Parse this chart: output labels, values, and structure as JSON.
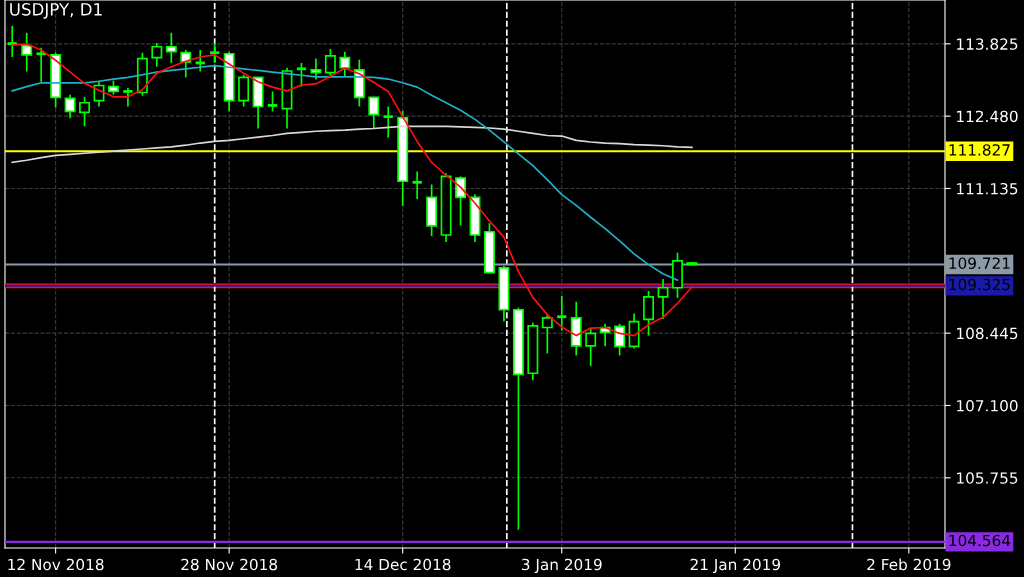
{
  "chart_data": {
    "type": "candlestick",
    "title": "USDJPY, D1",
    "categories": [
      null,
      null,
      null,
      "12 Nov 2018",
      null,
      null,
      null,
      null,
      null,
      null,
      null,
      null,
      null,
      null,
      null,
      "28 Nov 2018",
      null,
      null,
      null,
      null,
      null,
      null,
      null,
      null,
      null,
      null,
      null,
      "14 Dec 2018",
      null,
      null,
      null,
      null,
      null,
      null,
      null,
      null,
      null,
      null,
      "3 Jan 2019",
      null,
      null,
      null,
      null,
      null,
      null,
      null,
      null,
      null,
      null,
      null,
      "21 Jan 2019",
      null,
      null,
      null,
      null,
      null,
      null,
      null,
      null,
      null,
      null,
      null,
      "2 Feb 2019",
      null,
      null
    ],
    "series": [
      {
        "type": "line",
        "color": "#d8d8d8",
        "values": [
          111.62,
          111.66,
          111.71,
          111.75,
          111.77,
          111.79,
          111.81,
          111.83,
          111.85,
          111.87,
          111.89,
          111.91,
          111.94,
          111.98,
          112.01,
          112.03,
          112.06,
          112.09,
          112.12,
          112.16,
          112.18,
          112.2,
          112.21,
          112.22,
          112.24,
          112.25,
          112.27,
          112.29,
          112.29,
          112.29,
          112.29,
          112.28,
          112.27,
          112.26,
          112.24,
          112.2,
          112.16,
          112.12,
          112.11,
          112.03,
          112.0,
          111.98,
          111.97,
          111.95,
          111.94,
          111.93,
          111.91,
          111.9,
          null,
          null,
          null,
          null,
          null,
          null,
          null,
          null,
          null,
          null,
          null,
          null,
          null,
          null,
          null,
          null,
          null
        ]
      },
      {
        "type": "line",
        "color": "#20b0c8",
        "values": [
          112.95,
          113.03,
          113.1,
          113.1,
          113.1,
          113.1,
          113.13,
          113.17,
          113.2,
          113.25,
          113.3,
          113.33,
          113.36,
          113.39,
          113.42,
          113.39,
          113.36,
          113.33,
          113.3,
          113.27,
          113.24,
          113.21,
          113.21,
          113.21,
          113.21,
          113.2,
          113.17,
          113.1,
          113.02,
          112.87,
          112.73,
          112.59,
          112.42,
          112.22,
          112.0,
          111.78,
          111.56,
          111.3,
          111.02,
          110.82,
          110.6,
          110.39,
          110.16,
          109.92,
          109.72,
          109.55,
          109.43,
          null,
          null,
          null,
          null,
          null,
          null,
          null,
          null,
          null,
          null,
          null,
          null,
          null,
          null,
          null,
          null,
          null,
          null
        ]
      },
      {
        "type": "line",
        "color": "#ff1010",
        "values": [
          113.8,
          113.82,
          113.71,
          113.52,
          113.3,
          113.09,
          112.96,
          112.84,
          112.84,
          112.97,
          113.28,
          113.4,
          113.5,
          113.58,
          113.62,
          113.45,
          113.28,
          113.12,
          113.02,
          112.95,
          113.06,
          113.08,
          113.22,
          113.37,
          113.27,
          113.11,
          112.94,
          112.47,
          112.01,
          111.62,
          111.38,
          111.16,
          110.86,
          110.53,
          110.23,
          109.59,
          109.11,
          108.79,
          108.56,
          108.4,
          108.54,
          108.55,
          108.44,
          108.4,
          108.6,
          108.74,
          109.0,
          109.3,
          null,
          null,
          null,
          null,
          null,
          null,
          null,
          null,
          null,
          null,
          null,
          null,
          null,
          null,
          null,
          null,
          null
        ]
      },
      {
        "type": "candlestick",
        "color": "#00ff00",
        "ohlc": [
          [
            113.83,
            114.16,
            113.58,
            113.83
          ],
          [
            113.79,
            114.03,
            113.31,
            113.62
          ],
          [
            113.64,
            113.75,
            113.12,
            113.64
          ],
          [
            113.62,
            113.66,
            112.64,
            112.83
          ],
          [
            112.81,
            112.88,
            112.44,
            112.57
          ],
          [
            112.55,
            112.84,
            112.29,
            112.73
          ],
          [
            112.77,
            113.14,
            112.66,
            113.05
          ],
          [
            113.03,
            113.14,
            112.88,
            112.94
          ],
          [
            112.94,
            113.01,
            112.66,
            112.94
          ],
          [
            112.92,
            113.66,
            112.86,
            113.55
          ],
          [
            113.57,
            113.84,
            113.4,
            113.77
          ],
          [
            113.77,
            114.03,
            113.47,
            113.68
          ],
          [
            113.66,
            113.71,
            113.2,
            113.49
          ],
          [
            113.47,
            113.71,
            113.31,
            113.47
          ],
          [
            113.66,
            113.84,
            113.47,
            113.66
          ],
          [
            113.64,
            113.68,
            112.57,
            112.77
          ],
          [
            112.77,
            113.25,
            112.66,
            113.2
          ],
          [
            113.2,
            113.21,
            112.25,
            112.66
          ],
          [
            112.68,
            112.94,
            112.57,
            112.68
          ],
          [
            112.62,
            113.38,
            112.25,
            113.32
          ],
          [
            113.36,
            113.47,
            113.03,
            113.36
          ],
          [
            113.34,
            113.55,
            113.16,
            113.29
          ],
          [
            113.29,
            113.73,
            113.21,
            113.6
          ],
          [
            113.57,
            113.68,
            113.21,
            113.38
          ],
          [
            113.34,
            113.53,
            112.66,
            112.83
          ],
          [
            112.83,
            112.84,
            112.25,
            112.51
          ],
          [
            112.47,
            112.66,
            112.08,
            112.47
          ],
          [
            112.45,
            112.58,
            110.81,
            111.27
          ],
          [
            111.25,
            111.45,
            110.94,
            111.25
          ],
          [
            110.97,
            111.21,
            110.25,
            110.44
          ],
          [
            110.27,
            111.42,
            110.14,
            111.36
          ],
          [
            111.33,
            111.36,
            110.45,
            110.97
          ],
          [
            110.97,
            111.03,
            110.14,
            110.27
          ],
          [
            110.33,
            110.49,
            109.57,
            109.57
          ],
          [
            109.66,
            109.7,
            108.66,
            108.88
          ],
          [
            108.88,
            108.92,
            104.79,
            107.68
          ],
          [
            107.7,
            108.64,
            107.57,
            108.58
          ],
          [
            108.55,
            108.79,
            108.07,
            108.73
          ],
          [
            108.75,
            109.14,
            108.49,
            108.75
          ],
          [
            108.73,
            109.03,
            108.03,
            108.21
          ],
          [
            108.21,
            108.53,
            107.83,
            108.44
          ],
          [
            108.55,
            108.62,
            108.2,
            108.46
          ],
          [
            108.57,
            108.62,
            108.03,
            108.2
          ],
          [
            108.2,
            108.81,
            108.16,
            108.66
          ],
          [
            108.7,
            109.23,
            108.4,
            109.12
          ],
          [
            109.12,
            109.45,
            108.71,
            109.29
          ],
          [
            109.29,
            109.94,
            109.1,
            109.79
          ],
          [
            109.75,
            109.77,
            109.71,
            109.72
          ],
          null,
          null,
          null,
          null,
          null,
          null,
          null,
          null,
          null,
          null,
          null,
          null,
          null,
          null,
          null,
          null,
          null
        ]
      }
    ],
    "ylim": [
      104.45,
      114.64
    ],
    "yticks": [
      {
        "value": 105.755,
        "label": "105.755"
      },
      {
        "value": 107.1,
        "label": "107.100"
      },
      {
        "value": 108.445,
        "label": "108.445"
      },
      {
        "value": 111.135,
        "label": "111.135"
      },
      {
        "value": 112.48,
        "label": "112.480"
      },
      {
        "value": 113.825,
        "label": "113.825"
      }
    ],
    "ref_lines": [
      {
        "axis": "y",
        "value": 111.827,
        "label": "111.827",
        "color": "#ffff00",
        "line_style": "solid"
      },
      {
        "axis": "y",
        "value": 109.721,
        "label": "109.721",
        "color": "#8c9aa8",
        "line_style": "solid"
      },
      {
        "axis": "y",
        "value": 109.325,
        "color": "#ff1010",
        "line_style": "solid"
      },
      {
        "axis": "y",
        "value": 109.325,
        "label": "109.325",
        "color": "#1a1aa8",
        "line_style": "solid"
      },
      {
        "axis": "y",
        "value": 104.564,
        "label": "104.564",
        "color": "#8a2be2",
        "line_style": "solid"
      }
    ],
    "grid": true
  }
}
